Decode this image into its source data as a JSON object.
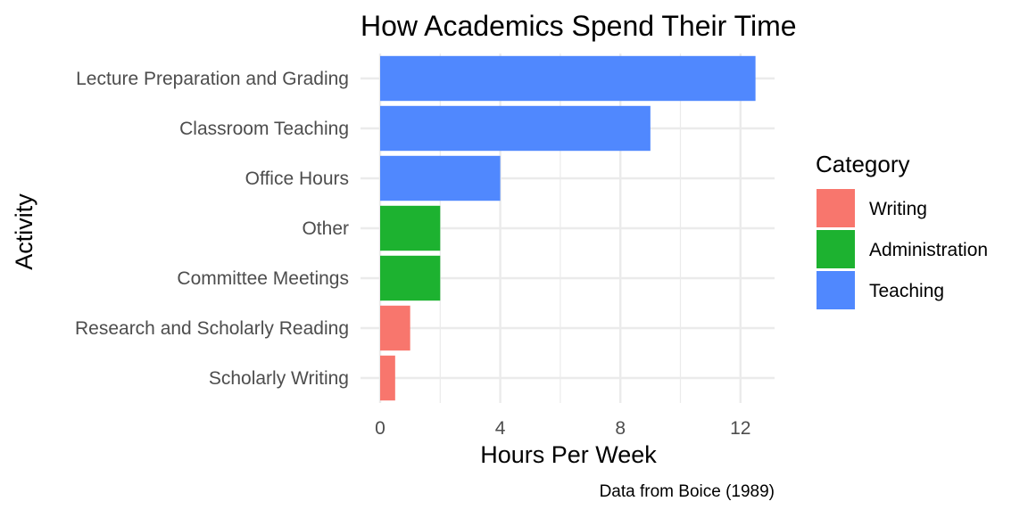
{
  "chart_data": {
    "type": "bar",
    "orientation": "horizontal",
    "title": "How Academics Spend Their Time",
    "xlabel": "Hours Per Week",
    "ylabel": "Activity",
    "caption": "Data from Boice (1989)",
    "xlim": [
      0,
      13.1
    ],
    "x_ticks": [
      0,
      4,
      8,
      12
    ],
    "grid": true,
    "legend": {
      "title": "Category",
      "position": "right",
      "entries": [
        {
          "name": "Writing",
          "color": "#F8766D"
        },
        {
          "name": "Administration",
          "color": "#1DB230"
        },
        {
          "name": "Teaching",
          "color": "#5088FE"
        }
      ]
    },
    "categories": [
      "Lecture Preparation and Grading",
      "Classroom Teaching",
      "Office Hours",
      "Other",
      "Committee Meetings",
      "Research and Scholarly Reading",
      "Scholarly Writing"
    ],
    "values": [
      12.5,
      9,
      4,
      2,
      2,
      1,
      0.5
    ],
    "category_group": [
      "Teaching",
      "Teaching",
      "Teaching",
      "Administration",
      "Administration",
      "Writing",
      "Writing"
    ]
  }
}
